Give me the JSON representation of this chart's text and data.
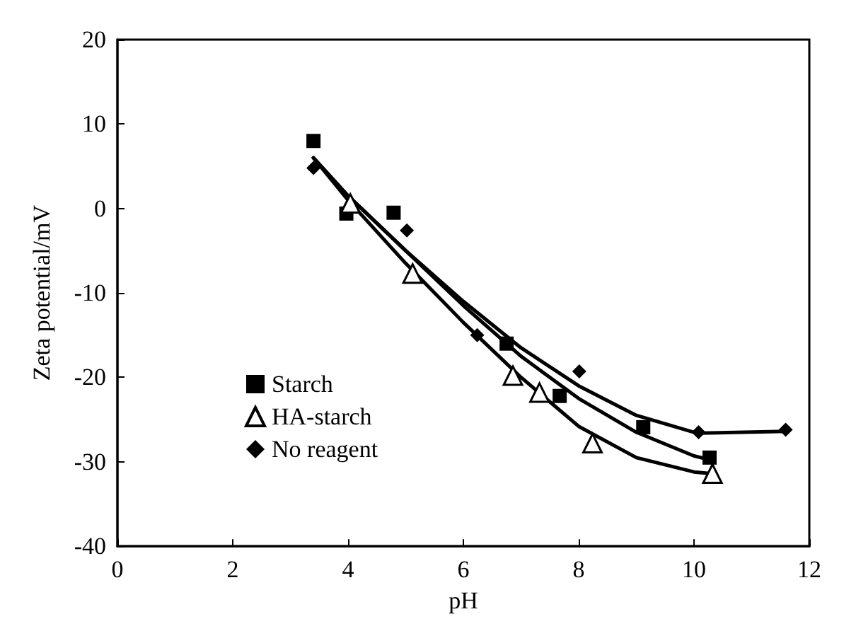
{
  "chart_data": {
    "type": "scatter",
    "xlabel": "pH",
    "ylabel": "Zeta potential/mV",
    "xlim": [
      0,
      12
    ],
    "xticks": [
      0,
      2,
      4,
      6,
      8,
      10,
      12
    ],
    "ylim": [
      -40,
      20
    ],
    "yticks": [
      -40,
      -30,
      -20,
      -10,
      0,
      10,
      20
    ],
    "grid": false,
    "legend": "left",
    "series": [
      {
        "name": "Starch",
        "color": "#000000",
        "marker": "square",
        "x": [
          3.4,
          3.97,
          4.79,
          6.75,
          7.67,
          9.12,
          10.27
        ],
        "values": [
          8.0,
          -0.6,
          -0.5,
          -16.0,
          -22.2,
          -25.9,
          -29.5
        ]
      },
      {
        "name": "HA-starch",
        "color": "#000000",
        "marker": "triangle",
        "x": [
          4.04,
          5.12,
          6.86,
          7.32,
          8.24,
          10.32
        ],
        "values": [
          0.6,
          -7.7,
          -19.8,
          -21.8,
          -27.8,
          -31.4
        ]
      },
      {
        "name": "No reagent",
        "color": "#000000",
        "marker": "diamond",
        "x": [
          3.4,
          5.02,
          6.24,
          8.01,
          10.08,
          11.59
        ],
        "values": [
          4.8,
          -2.6,
          -15.0,
          -19.3,
          -26.5,
          -26.2
        ]
      },
      {
        "type": "line",
        "color": "#000000",
        "marker": "none",
        "x": [
          3.4,
          4,
          5,
          6,
          7,
          8,
          9,
          10,
          10.3
        ],
        "values": [
          6,
          1.5,
          -5,
          -11.5,
          -17.5,
          -22.5,
          -26.5,
          -29.3,
          -29.8
        ]
      },
      {
        "type": "line",
        "color": "#000000",
        "marker": "none",
        "x": [
          3.4,
          4,
          5,
          6,
          7,
          8,
          9,
          10,
          10.3
        ],
        "values": [
          6,
          1,
          -6.5,
          -13.5,
          -20,
          -25.8,
          -29.5,
          -31.2,
          -31.4
        ]
      },
      {
        "type": "line",
        "color": "#000000",
        "marker": "none",
        "x": [
          3.4,
          4,
          5,
          6,
          7,
          8,
          9,
          10,
          10.1,
          11.6
        ],
        "values": [
          6,
          1.5,
          -5,
          -11,
          -16.5,
          -21,
          -24.5,
          -26.5,
          -26.6,
          -26.4
        ]
      }
    ]
  }
}
